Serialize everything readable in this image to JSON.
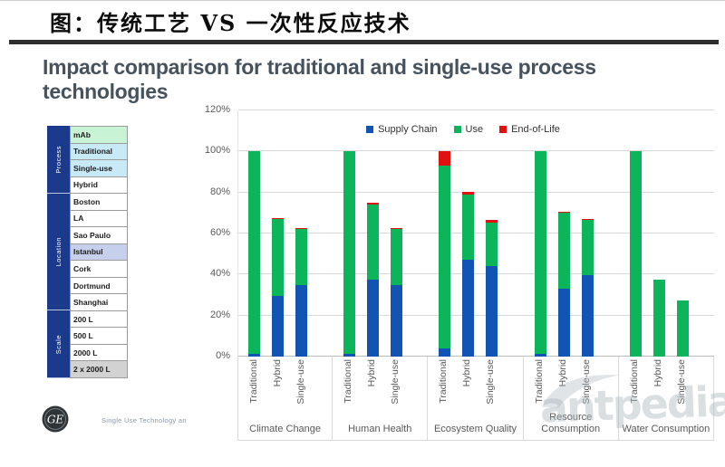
{
  "slide": {
    "title_cn": "图：传统工艺 VS 一次性反应技术",
    "title_en_lines": [
      "Impact comparison for traditional and single-use process",
      "technologies"
    ],
    "footer_text": "Single Use Technology an",
    "watermark": "antpedia",
    "logo_text": "GE"
  },
  "sidebar": {
    "strip_color": "#1b3a8c",
    "groups": [
      {
        "label": "Process",
        "rows": 4
      },
      {
        "label": "Location",
        "rows": 7
      },
      {
        "label": "Scale",
        "rows": 4
      }
    ],
    "rows": [
      {
        "label": "mAb",
        "bg": "#c8f3d5"
      },
      {
        "label": "Traditional",
        "bg": "#c8e9f6"
      },
      {
        "label": "Single-use",
        "bg": "#c8e9f6"
      },
      {
        "label": "Hybrid",
        "bg": "#ffffff"
      },
      {
        "label": "Boston",
        "bg": "#ffffff"
      },
      {
        "label": "LA",
        "bg": "#ffffff"
      },
      {
        "label": "Sao Paulo",
        "bg": "#ffffff"
      },
      {
        "label": "Istanbul",
        "bg": "#c6cfeb"
      },
      {
        "label": "Cork",
        "bg": "#ffffff"
      },
      {
        "label": "Dortmund",
        "bg": "#ffffff"
      },
      {
        "label": "Shanghai",
        "bg": "#ffffff"
      },
      {
        "label": "200 L",
        "bg": "#ffffff"
      },
      {
        "label": "500 L",
        "bg": "#ffffff"
      },
      {
        "label": "2000 L",
        "bg": "#ffffff"
      },
      {
        "label": "2 x 2000 L",
        "bg": "#d2d2d2"
      }
    ]
  },
  "chart_data": {
    "type": "bar",
    "stacked": true,
    "unit": "%",
    "ylim": [
      0,
      120
    ],
    "yticks": [
      0,
      20,
      40,
      60,
      80,
      100,
      120
    ],
    "ytick_labels": [
      "0%",
      "20%",
      "40%",
      "60%",
      "80%",
      "100%",
      "120%"
    ],
    "grid": true,
    "legend_position": "top",
    "legend": [
      {
        "name": "Supply Chain",
        "color": "#1254b4"
      },
      {
        "name": "Use",
        "color": "#0cb45a"
      },
      {
        "name": "End-of-Life",
        "color": "#e01111"
      }
    ],
    "categories": [
      "Climate Change",
      "Human Health",
      "Ecosystem Quality",
      "Resource Consumption",
      "Water Consumption"
    ],
    "bar_labels": [
      "Traditional",
      "Hybrid",
      "Single-use"
    ],
    "values": [
      {
        "category": "Climate Change",
        "bars": [
          {
            "name": "Traditional",
            "supply_chain": 1.5,
            "use": 98.5,
            "end_of_life": 0
          },
          {
            "name": "Hybrid",
            "supply_chain": 29.5,
            "use": 37.5,
            "end_of_life": 0.5
          },
          {
            "name": "Single-use",
            "supply_chain": 35,
            "use": 27,
            "end_of_life": 0.5
          }
        ]
      },
      {
        "category": "Human Health",
        "bars": [
          {
            "name": "Traditional",
            "supply_chain": 1.5,
            "use": 98.5,
            "end_of_life": 0
          },
          {
            "name": "Hybrid",
            "supply_chain": 37.5,
            "use": 36.5,
            "end_of_life": 1
          },
          {
            "name": "Single-use",
            "supply_chain": 35,
            "use": 27,
            "end_of_life": 0.5
          }
        ]
      },
      {
        "category": "Ecosystem Quality",
        "bars": [
          {
            "name": "Traditional",
            "supply_chain": 4,
            "use": 89,
            "end_of_life": 7
          },
          {
            "name": "Hybrid",
            "supply_chain": 47,
            "use": 32,
            "end_of_life": 1.5
          },
          {
            "name": "Single-use",
            "supply_chain": 44,
            "use": 21.5,
            "end_of_life": 1
          }
        ]
      },
      {
        "category": "Resource Consumption",
        "bars": [
          {
            "name": "Traditional",
            "supply_chain": 1.5,
            "use": 98.5,
            "end_of_life": 0
          },
          {
            "name": "Hybrid",
            "supply_chain": 33,
            "use": 37,
            "end_of_life": 0.5
          },
          {
            "name": "Single-use",
            "supply_chain": 39.5,
            "use": 27,
            "end_of_life": 0.5
          }
        ]
      },
      {
        "category": "Water Consumption",
        "bars": [
          {
            "name": "Traditional",
            "supply_chain": 0,
            "use": 100,
            "end_of_life": 0
          },
          {
            "name": "Hybrid",
            "supply_chain": 0,
            "use": 37.5,
            "end_of_life": 0
          },
          {
            "name": "Single-use",
            "supply_chain": 0,
            "use": 27.5,
            "end_of_life": 0
          }
        ]
      }
    ]
  }
}
